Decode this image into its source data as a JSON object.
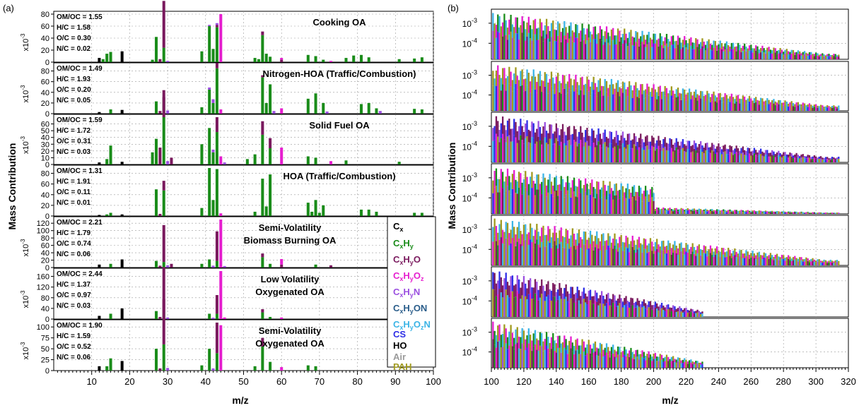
{
  "panel_a": {
    "label": "(a)",
    "xlabel": "m/z",
    "ylabel": "Mass Contribution",
    "x_ticks": [
      "10",
      "20",
      "30",
      "40",
      "50",
      "60",
      "70",
      "80",
      "90",
      "100"
    ],
    "xlim": [
      0,
      100
    ]
  },
  "panel_b": {
    "label": "(b)",
    "xlabel": "m/z",
    "ylabel": "Mass Contribution",
    "x_ticks": [
      "100",
      "120",
      "140",
      "160",
      "180",
      "200",
      "220",
      "240",
      "260",
      "280",
      "300",
      "320"
    ],
    "y_ticks": [
      "10",
      "10"
    ],
    "y_exponents": [
      "-3",
      "-4"
    ],
    "xlim": [
      100,
      320
    ],
    "scale": "log"
  },
  "legend": [
    {
      "base": "C",
      "sub": "x",
      "color": "#000000"
    },
    {
      "base": "C",
      "sub": "xH",
      "sub2": "y",
      "color": "#1a8c1a"
    },
    {
      "base": "C",
      "sub": "xH",
      "sub2": "yO",
      "color": "#7a1a5e"
    },
    {
      "base": "C",
      "sub": "xH",
      "sub2": "yO",
      "sub3": "z",
      "color": "#e61ecf"
    },
    {
      "base": "C",
      "sub": "xH",
      "sub2": "yN",
      "color": "#9b4fe0"
    },
    {
      "base": "C",
      "sub": "xH",
      "sub2": "yON",
      "color": "#2a5d8a"
    },
    {
      "base": "C",
      "sub": "xH",
      "sub2": "yO",
      "sub3": "zN",
      "color": "#3cb4e6"
    }
  ],
  "legend_plain": [
    {
      "label": "CS",
      "color": "#2e2ee6"
    },
    {
      "label": "HO",
      "color": "#000000"
    },
    {
      "label": "Air",
      "color": "#9a9a9a"
    },
    {
      "label": "PAH",
      "color": "#a09a1e"
    }
  ],
  "legend_text": [
    "C",
    "x",
    "C",
    "x",
    "H",
    "y",
    "C",
    "x",
    "H",
    "y",
    "O",
    "C",
    "x",
    "H",
    "y",
    "O",
    "z",
    "C",
    "x",
    "H",
    "y",
    "N",
    "C",
    "x",
    "H",
    "y",
    "ON",
    "C",
    "x",
    "H",
    "y",
    "O",
    "z",
    "N"
  ],
  "chart_data": [
    {
      "type": "bar",
      "title": "Cooking OA",
      "stats": [
        "OM/OC = 1.55",
        "H/C = 1.58",
        "O/C = 0.30",
        "N/C = 0.02"
      ],
      "y_multiplier": "x10",
      "y_exponent": "-3",
      "ylim": [
        0,
        80
      ],
      "y_ticks": [
        0,
        20,
        40,
        60,
        80
      ],
      "series": [
        {
          "name": "Cx",
          "x": [
            12,
            18
          ],
          "values": [
            7,
            18
          ]
        },
        {
          "name": "CxHy",
          "x": [
            13,
            14,
            15,
            26,
            27,
            29,
            39,
            41,
            42,
            43,
            53,
            54,
            55,
            56,
            57,
            67,
            69,
            71,
            77,
            79,
            81,
            83,
            91,
            95,
            97
          ],
          "values": [
            5,
            14,
            17,
            4,
            42,
            24,
            18,
            60,
            22,
            58,
            7,
            5,
            45,
            14,
            9,
            12,
            10,
            4,
            7,
            11,
            12,
            8,
            5,
            6,
            8
          ]
        },
        {
          "name": "CxHyO",
          "x": [
            28,
            29,
            43,
            55,
            60
          ],
          "values": [
            5,
            78,
            4,
            6,
            4
          ]
        },
        {
          "name": "CxHyOz",
          "x": [
            44,
            60,
            73
          ],
          "values": [
            80,
            3,
            2
          ]
        },
        {
          "name": "CxHyN",
          "x": [
            30,
            41,
            43
          ],
          "values": [
            2,
            2,
            3
          ]
        }
      ]
    },
    {
      "type": "bar",
      "title": "Nitrogen-HOA (Traffic/Combustion)",
      "stats": [
        "OM/OC = 1.49",
        "H/C = 1.93",
        "O/C = 0.20",
        "N/C = 0.05"
      ],
      "y_multiplier": "x10",
      "y_exponent": "-3",
      "ylim": [
        0,
        90
      ],
      "y_ticks": [
        0,
        20,
        40,
        60,
        80
      ],
      "series": [
        {
          "name": "Cx",
          "x": [
            12,
            18
          ],
          "values": [
            3,
            7
          ]
        },
        {
          "name": "CxHy",
          "x": [
            15,
            27,
            29,
            39,
            41,
            42,
            43,
            55,
            56,
            57,
            67,
            69,
            71,
            81,
            83,
            85,
            95,
            97
          ],
          "values": [
            8,
            23,
            25,
            12,
            45,
            20,
            85,
            68,
            20,
            55,
            28,
            38,
            20,
            18,
            20,
            10,
            9,
            8
          ]
        },
        {
          "name": "CxHyO",
          "x": [
            28,
            29,
            43,
            55
          ],
          "values": [
            5,
            6,
            10,
            4
          ]
        },
        {
          "name": "CxHyOz",
          "x": [
            44,
            60
          ],
          "values": [
            8,
            10
          ]
        },
        {
          "name": "CxHyN",
          "x": [
            30,
            41,
            42,
            58,
            72,
            86
          ],
          "values": [
            6,
            4,
            7,
            5,
            4,
            5
          ]
        }
      ]
    },
    {
      "type": "bar",
      "title": "Solid Fuel OA",
      "stats": [
        "OM/OC = 1.59",
        "H/C = 1.72",
        "O/C = 0.31",
        "N/C = 0.03"
      ],
      "y_multiplier": "x10",
      "y_exponent": "-3",
      "ylim": [
        0,
        70
      ],
      "y_ticks": [
        0,
        10,
        20,
        30,
        40,
        50,
        60
      ],
      "series": [
        {
          "name": "Cx",
          "x": [
            12,
            18
          ],
          "values": [
            3,
            4
          ]
        },
        {
          "name": "CxHy",
          "x": [
            14,
            15,
            26,
            27,
            29,
            39,
            41,
            42,
            43,
            51,
            53,
            55,
            57,
            67,
            69,
            77,
            91
          ],
          "values": [
            8,
            28,
            18,
            38,
            70,
            30,
            54,
            18,
            48,
            8,
            15,
            44,
            24,
            12,
            10,
            6,
            4
          ]
        },
        {
          "name": "CxHyO",
          "x": [
            28,
            29,
            31,
            43,
            55,
            57
          ],
          "values": [
            25,
            40,
            10,
            22,
            20,
            15
          ]
        },
        {
          "name": "CxHyOz",
          "x": [
            44,
            60,
            73
          ],
          "values": [
            12,
            25,
            5
          ]
        },
        {
          "name": "CxHyN",
          "x": [
            30,
            42,
            45
          ],
          "values": [
            5,
            4,
            3
          ]
        }
      ]
    },
    {
      "type": "bar",
      "title": "HOA (Traffic/Combustion)",
      "stats": [
        "OM/OC = 1.31",
        "H/C = 1.91",
        "O/C = 0.11",
        "N/C = 0.01"
      ],
      "y_multiplier": "",
      "y_exponent": "",
      "ylim": [
        0,
        90
      ],
      "y_ticks": [
        0,
        20,
        40,
        60,
        80
      ],
      "series": [
        {
          "name": "Cx",
          "x": [
            12,
            18
          ],
          "values": [
            2,
            3
          ]
        },
        {
          "name": "CxHy",
          "x": [
            14,
            15,
            27,
            29,
            39,
            41,
            42,
            43,
            53,
            55,
            56,
            57,
            67,
            68,
            69,
            70,
            71,
            81,
            83,
            85,
            95,
            97
          ],
          "values": [
            3,
            6,
            50,
            48,
            15,
            90,
            30,
            88,
            8,
            70,
            18,
            78,
            25,
            8,
            30,
            6,
            20,
            12,
            12,
            8,
            6,
            6
          ]
        },
        {
          "name": "CxHyO",
          "x": [
            28,
            29
          ],
          "values": [
            4,
            18
          ]
        },
        {
          "name": "CxHyOz",
          "x": [
            44
          ],
          "values": [
            5
          ]
        }
      ]
    },
    {
      "type": "bar",
      "title": "Semi-Volatility Biomass Burning OA",
      "stats": [
        "OM/OC = 2.21",
        "H/C = 1.79",
        "O/C = 0.74",
        "N/C = 0.06"
      ],
      "y_multiplier": "x10",
      "y_exponent": "-3",
      "ylim": [
        0,
        130
      ],
      "y_ticks": [
        0,
        20,
        40,
        60,
        80,
        100,
        120
      ],
      "series": [
        {
          "name": "Cx",
          "x": [
            12,
            18
          ],
          "values": [
            8,
            22
          ]
        },
        {
          "name": "CxHy",
          "x": [
            15,
            27,
            29,
            39,
            41,
            43,
            55,
            57,
            69
          ],
          "values": [
            10,
            18,
            15,
            10,
            22,
            18,
            28,
            10,
            8
          ]
        },
        {
          "name": "CxHyO",
          "x": [
            28,
            29,
            31,
            43,
            55,
            60,
            73
          ],
          "values": [
            5,
            100,
            10,
            80,
            10,
            8,
            6
          ]
        },
        {
          "name": "CxHyOz",
          "x": [
            44,
            60
          ],
          "values": [
            130,
            15
          ]
        },
        {
          "name": "CxHyN",
          "x": [
            30,
            42,
            45
          ],
          "values": [
            6,
            5,
            4
          ]
        }
      ]
    },
    {
      "type": "bar",
      "title": "Low Volatility Oxygenated OA",
      "stats": [
        "OM/OC = 2.44",
        "H/C = 1.37",
        "O/C = 0.97",
        "N/C = 0.03"
      ],
      "y_multiplier": "x10",
      "y_exponent": "-3",
      "ylim": [
        0,
        180
      ],
      "y_ticks": [
        0,
        40,
        80,
        120,
        160
      ],
      "series": [
        {
          "name": "Cx",
          "x": [
            12,
            18
          ],
          "values": [
            12,
            40
          ]
        },
        {
          "name": "CxHy",
          "x": [
            15,
            27,
            29,
            41,
            43,
            55,
            57
          ],
          "values": [
            20,
            30,
            25,
            20,
            20,
            25,
            8
          ]
        },
        {
          "name": "CxHyO",
          "x": [
            28,
            29,
            43,
            55
          ],
          "values": [
            8,
            170,
            70,
            12
          ]
        },
        {
          "name": "CxHyOz",
          "x": [
            44,
            45,
            60
          ],
          "values": [
            180,
            6,
            6
          ]
        },
        {
          "name": "CxHyN",
          "x": [
            30,
            42
          ],
          "values": [
            6,
            5
          ]
        }
      ]
    },
    {
      "type": "bar",
      "title": "Semi-Volatility Oxygenated OA",
      "stats": [
        "OM/OC = 1.90",
        "H/C = 1.59",
        "O/C = 0.52",
        "N/C = 0.06"
      ],
      "y_multiplier": "x10",
      "y_exponent": "-3",
      "ylim": [
        0,
        110
      ],
      "y_ticks": [
        0,
        25,
        50,
        75,
        100
      ],
      "series": [
        {
          "name": "Cx",
          "x": [
            12,
            18
          ],
          "values": [
            10,
            22
          ]
        },
        {
          "name": "CxHy",
          "x": [
            14,
            15,
            27,
            29,
            39,
            41,
            43,
            53,
            55,
            57,
            67,
            69
          ],
          "values": [
            10,
            28,
            50,
            60,
            12,
            50,
            40,
            10,
            55,
            20,
            12,
            10
          ]
        },
        {
          "name": "CxHyO",
          "x": [
            28,
            29,
            43,
            55
          ],
          "values": [
            5,
            104,
            70,
            20
          ]
        },
        {
          "name": "CxHyOz",
          "x": [
            44,
            60
          ],
          "values": [
            104,
            8
          ]
        },
        {
          "name": "CxHyN",
          "x": [
            30,
            42
          ],
          "values": [
            6,
            5
          ]
        }
      ]
    }
  ]
}
